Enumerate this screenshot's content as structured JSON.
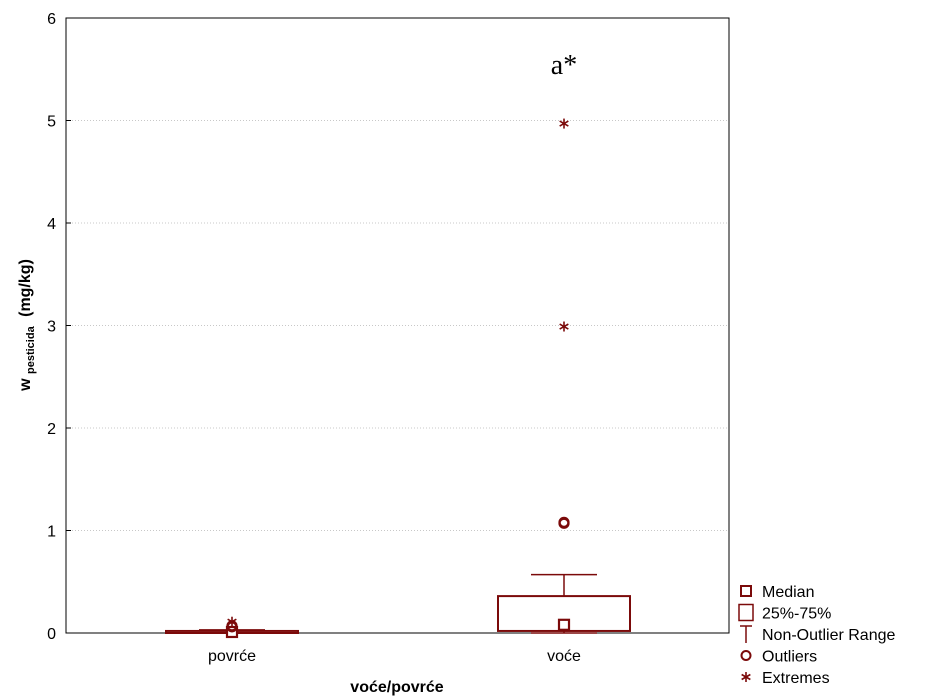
{
  "chart_data": {
    "type": "boxplot",
    "xlabel": "voće/povrće",
    "ylabel_main": "w",
    "ylabel_sub": "pesticida",
    "ylabel_unit": "(mg/kg)",
    "ylim": [
      0,
      6
    ],
    "yticks": [
      0,
      1,
      2,
      3,
      4,
      5,
      6
    ],
    "grid": true,
    "categories": [
      "povrće",
      "voće"
    ],
    "boxes": [
      {
        "category": "povrće",
        "median": 0.01,
        "q1": 0.0,
        "q3": 0.02,
        "whisker_low": 0.0,
        "whisker_high": 0.03,
        "outliers": [
          0.06,
          0.07
        ],
        "extremes": [
          0.11
        ]
      },
      {
        "category": "voće",
        "median": 0.08,
        "q1": 0.02,
        "q3": 0.36,
        "whisker_low": 0.0,
        "whisker_high": 0.57,
        "outliers": [
          1.07,
          1.08
        ],
        "extremes": [
          2.99,
          4.97
        ]
      }
    ],
    "annotations": [
      {
        "category": "voće",
        "y": 5.55,
        "text": "a*"
      }
    ],
    "legend": {
      "placement": "bottom-right",
      "items": [
        {
          "symbol": "median-square",
          "label": "Median"
        },
        {
          "symbol": "box",
          "label": "25%-75%"
        },
        {
          "symbol": "whisker",
          "label": "Non-Outlier Range"
        },
        {
          "symbol": "outlier-circle",
          "label": "Outliers"
        },
        {
          "symbol": "extreme-star",
          "label": "Extremes"
        }
      ]
    },
    "colors": {
      "series": "#7b0a0a",
      "grid": "#c8c8c8",
      "axis": "#000000"
    }
  }
}
